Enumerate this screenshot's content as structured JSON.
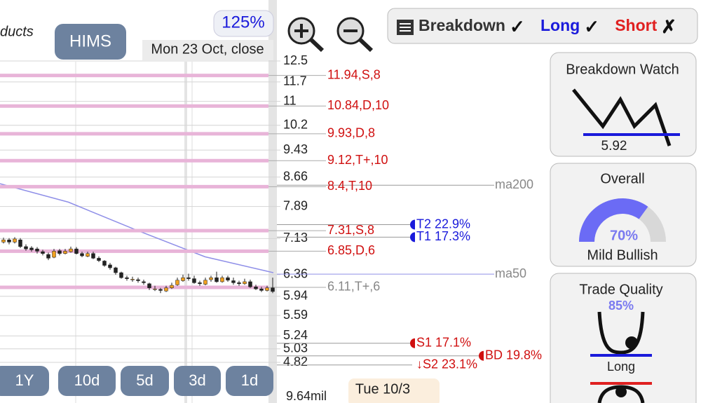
{
  "header": {
    "title_fragment": "ducts",
    "symbol": "HIMS",
    "zoom": "125%",
    "date": "Mon 23 Oct, close"
  },
  "toggles": [
    {
      "label": "Breakdown",
      "state": "✓",
      "color": "#333"
    },
    {
      "label": "Long",
      "state": "✓",
      "color": "#1a1adb"
    },
    {
      "label": "Short",
      "state": "✗",
      "color": "#e02020"
    }
  ],
  "ranges": [
    "1Y",
    "10d",
    "5d",
    "3d",
    "1d"
  ],
  "chart_data": {
    "type": "candlestick",
    "log_scale": true,
    "grid": true,
    "ylim": [
      4.82,
      12.5
    ],
    "yticks": [
      12.5,
      11.7,
      11,
      10.2,
      9.43,
      8.66,
      7.89,
      7.13,
      6.36,
      5.94,
      5.59,
      5.24,
      5.03,
      4.82
    ],
    "open": [
      7.05,
      7.1,
      7.05,
      7.1,
      6.95,
      6.92,
      6.9,
      6.84,
      6.78,
      6.72,
      6.86,
      6.8,
      6.84,
      6.9,
      6.8,
      6.74,
      6.8,
      6.7,
      6.64,
      6.56,
      6.5,
      6.4,
      6.3,
      6.26,
      6.26,
      6.22,
      6.18,
      6.08,
      6.07,
      6.04,
      6.1,
      6.16,
      6.24,
      6.3,
      6.28,
      6.2,
      6.17,
      6.26,
      6.3,
      6.22,
      6.3,
      6.24,
      6.2,
      6.18,
      6.22,
      6.12,
      6.08,
      6.05,
      6.1
    ],
    "high": [
      7.15,
      7.14,
      7.16,
      7.14,
      7.0,
      6.96,
      6.94,
      6.88,
      6.82,
      6.9,
      6.9,
      6.9,
      6.95,
      6.94,
      6.84,
      6.84,
      6.84,
      6.74,
      6.66,
      6.6,
      6.52,
      6.42,
      6.34,
      6.32,
      6.3,
      6.26,
      6.2,
      6.14,
      6.1,
      6.14,
      6.2,
      6.3,
      6.36,
      6.38,
      6.34,
      6.24,
      6.3,
      6.34,
      6.42,
      6.34,
      6.34,
      6.3,
      6.24,
      6.28,
      6.26,
      6.16,
      6.12,
      6.14,
      6.3
    ],
    "low": [
      7.02,
      7.0,
      7.02,
      6.92,
      6.86,
      6.84,
      6.8,
      6.76,
      6.66,
      6.7,
      6.76,
      6.78,
      6.82,
      6.78,
      6.72,
      6.72,
      6.68,
      6.62,
      6.52,
      6.46,
      6.36,
      6.28,
      6.24,
      6.22,
      6.2,
      6.16,
      6.06,
      6.04,
      6.0,
      6.02,
      6.08,
      6.14,
      6.22,
      6.24,
      6.18,
      6.14,
      6.15,
      6.22,
      6.2,
      6.2,
      6.22,
      6.16,
      6.14,
      6.16,
      6.1,
      6.06,
      6.02,
      6.03,
      6.0
    ],
    "close": [
      7.1,
      7.05,
      7.12,
      6.95,
      6.9,
      6.88,
      6.85,
      6.8,
      6.7,
      6.85,
      6.8,
      6.85,
      6.9,
      6.8,
      6.75,
      6.8,
      6.7,
      6.65,
      6.55,
      6.5,
      6.4,
      6.3,
      6.28,
      6.27,
      6.24,
      6.2,
      6.1,
      6.08,
      6.05,
      6.1,
      6.15,
      6.25,
      6.3,
      6.28,
      6.2,
      6.18,
      6.25,
      6.3,
      6.22,
      6.3,
      6.25,
      6.2,
      6.18,
      6.22,
      6.12,
      6.08,
      6.05,
      6.1,
      6.03
    ],
    "up_color": "#f0a020",
    "down_color": "#222222",
    "levels": [
      {
        "value": 11.94,
        "label": "11.94,S,8",
        "color": "#d01010"
      },
      {
        "value": 10.84,
        "label": "10.84,D,10",
        "color": "#d01010"
      },
      {
        "value": 9.93,
        "label": "9.93,D,8",
        "color": "#d01010"
      },
      {
        "value": 9.12,
        "label": "9.12,T+,10",
        "color": "#d01010"
      },
      {
        "value": 8.4,
        "label": "8.4,T,10",
        "color": "#d01010"
      },
      {
        "value": 7.31,
        "label": "7.31,S,8",
        "color": "#d01010"
      },
      {
        "value": 6.85,
        "label": "6.85,D,6",
        "color": "#d01010"
      },
      {
        "value": 6.11,
        "label": "6.11,T+,6",
        "color": "#888888"
      }
    ],
    "level_color": "#e8b4d8",
    "targets": [
      {
        "value": 7.45,
        "label": "T2 22.9%",
        "color": "#1a1adb"
      },
      {
        "value": 7.16,
        "label": "T1 17.3%",
        "color": "#1a1adb"
      },
      {
        "value": 5.12,
        "label": "S1 17.1%",
        "color": "#d01010"
      },
      {
        "value": 4.78,
        "label": "↓S2 23.1%",
        "color": "#d01010"
      },
      {
        "value": 4.92,
        "label": "BD 19.8%",
        "color": "#d01010"
      }
    ],
    "ma": [
      {
        "name": "ma200",
        "level": 8.44,
        "color": "#999999"
      },
      {
        "name": "ma50",
        "level": 6.37,
        "color": "#8f8fe8",
        "values": [
          8.48,
          8.0,
          7.32,
          6.73,
          6.4
        ]
      }
    ],
    "volume_label": "9.64mil",
    "cursor_date": "Tue 10/3"
  },
  "panels": {
    "breakdown_watch": {
      "title": "Breakdown Watch",
      "value": 5.92
    },
    "overall": {
      "title": "Overall",
      "value": 70,
      "value_label": "70%",
      "label": "Mild Bullish"
    },
    "trade_quality": {
      "title": "Trade Quality",
      "value": 85,
      "value_label": "85%",
      "label": "Long"
    }
  }
}
